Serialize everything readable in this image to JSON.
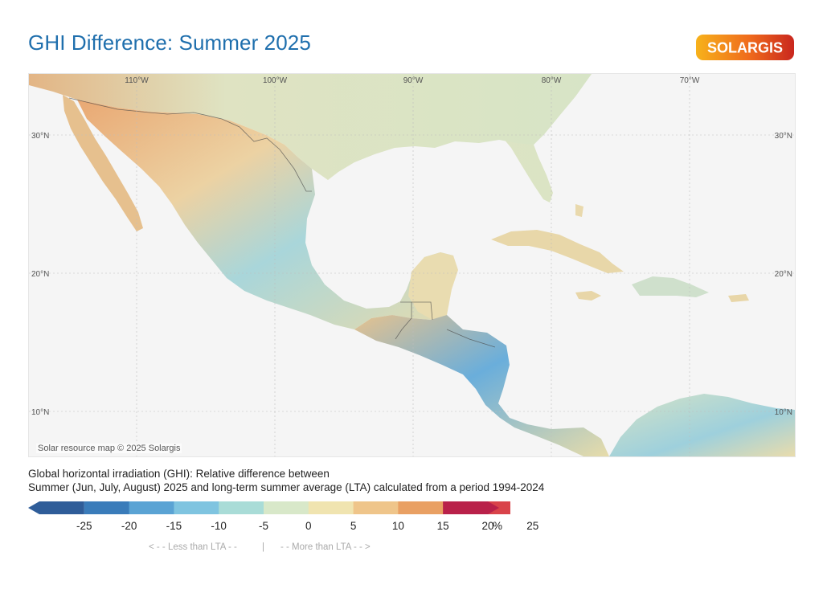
{
  "header": {
    "title": "GHI Difference: Summer 2025",
    "logo_text": "SOLARGIS"
  },
  "map": {
    "credit": "Solar resource map © 2025 Solargis",
    "longitude_labels": [
      "110°W",
      "100°W",
      "90°W",
      "80°W",
      "70°W"
    ],
    "latitude_labels": [
      "30°N",
      "20°N",
      "10°N"
    ],
    "sea_color": "#f5f5f5"
  },
  "description": {
    "line1": "Global horizontal irradiation (GHI): Relative difference between",
    "line2": "Summer (Jun, July, August) 2025 and long-term summer average (LTA) calculated from a period 1994-2024"
  },
  "legend": {
    "ticks": [
      "-25",
      "-20",
      "-15",
      "-10",
      "-5",
      "0",
      "5",
      "10",
      "15",
      "20",
      "25"
    ],
    "unit": "%",
    "colors": [
      "#2f5d99",
      "#3a7cba",
      "#5aa3d4",
      "#7fc4e0",
      "#a9dcd7",
      "#d8e8c9",
      "#f0e4b0",
      "#efc58a",
      "#e9a063",
      "#e2784f",
      "#d9434a",
      "#b9214a"
    ],
    "less_label": "< - -  Less than LTA  - -",
    "separator": "|",
    "more_label": "- -  More than LTA  - - >"
  }
}
